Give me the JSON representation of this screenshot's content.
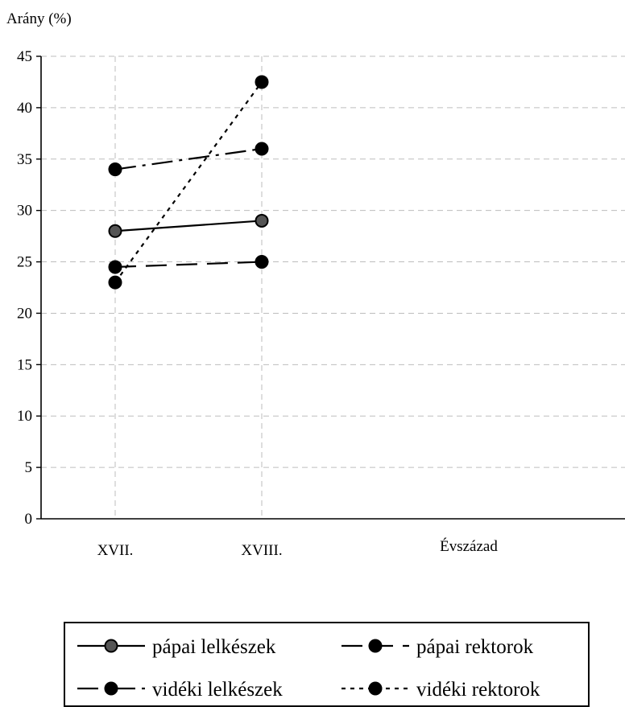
{
  "chart_data": {
    "type": "line",
    "ylabel": "Arány (%)",
    "xlabel": "Évszázad",
    "categories": [
      "XVII.",
      "XVIII."
    ],
    "ylim": [
      0,
      45
    ],
    "yticks": [
      0,
      5,
      10,
      15,
      20,
      25,
      30,
      35,
      40,
      45
    ],
    "grid": true,
    "legend_position": "bottom",
    "series": [
      {
        "name": "pápai lelkészek",
        "values": [
          28,
          29
        ],
        "line_style": "solid",
        "marker_color": "#555555"
      },
      {
        "name": "pápai rektorok",
        "values": [
          24.5,
          25
        ],
        "line_style": "long-dash",
        "marker_color": "#000000"
      },
      {
        "name": "vidéki lelkészek",
        "values": [
          34,
          36
        ],
        "line_style": "dash-dot",
        "marker_color": "#000000"
      },
      {
        "name": "vidéki rektorok",
        "values": [
          23,
          42.5
        ],
        "line_style": "dotted",
        "marker_color": "#000000"
      }
    ]
  }
}
